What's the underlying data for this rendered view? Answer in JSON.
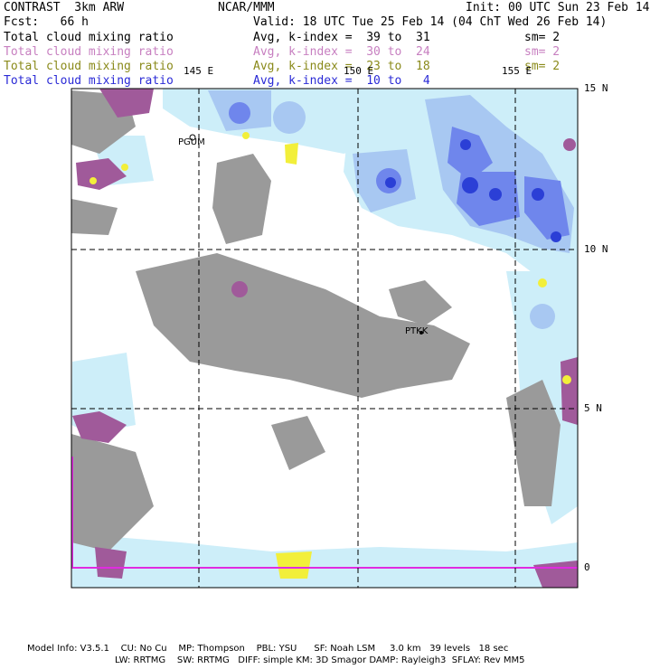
{
  "header": {
    "model_name": "CONTRAST  3km ARW",
    "forecast": "Fcst:   66 h",
    "org": "NCAR/MMM",
    "init_time": "Init: 00 UTC Sun 23 Feb 14",
    "valid_time": "Valid: 18 UTC Tue 25 Feb 14 (04 ChT Wed 26 Feb 14)"
  },
  "legend": [
    {
      "field": "Total cloud mixing ratio",
      "range": "Avg, k-index =  39 to  31",
      "smooth": "sm= 2",
      "color": "#000000"
    },
    {
      "field": "Total cloud mixing ratio",
      "range": "Avg, k-index =  30 to  24",
      "smooth": "sm= 2",
      "color": "#c77fc0"
    },
    {
      "field": "Total cloud mixing ratio",
      "range": "Avg, k-index =  23 to  18",
      "smooth": "sm= 2",
      "color": "#8a8a1a"
    },
    {
      "field": "Total cloud mixing ratio",
      "range": "Avg, k-index =  10 to   4",
      "smooth": "",
      "color": "#2a2ad6"
    }
  ],
  "map": {
    "lon_labels": [
      "145 E",
      "150 E",
      "155 E"
    ],
    "lat_labels": [
      "15 N",
      "10 N",
      "5 N",
      "0"
    ],
    "places": [
      "PGUM",
      "PTKK"
    ],
    "colors": {
      "land_gray": "#9a9a9a",
      "cloud_light": "#cdeef9",
      "cloud_mid": "#a8c8f2",
      "cloud_blue": "#6f86ec",
      "cloud_deep": "#2b3fd6",
      "purple": "#a05a9a",
      "yellow": "#f2ef3a",
      "magenta_line": "#e02be0",
      "grid": "#000000"
    }
  },
  "footer": {
    "line1": "Model Info: V3.5.1    CU: No Cu    MP: Thompson    PBL: YSU      SF: Noah LSM     3.0 km   39 levels   18 sec",
    "line2": "LW: RRTMG    SW: RRTMG   DIFF: simple KM: 3D Smagor DAMP: Rayleigh3  SFLAY: Rev MM5"
  }
}
